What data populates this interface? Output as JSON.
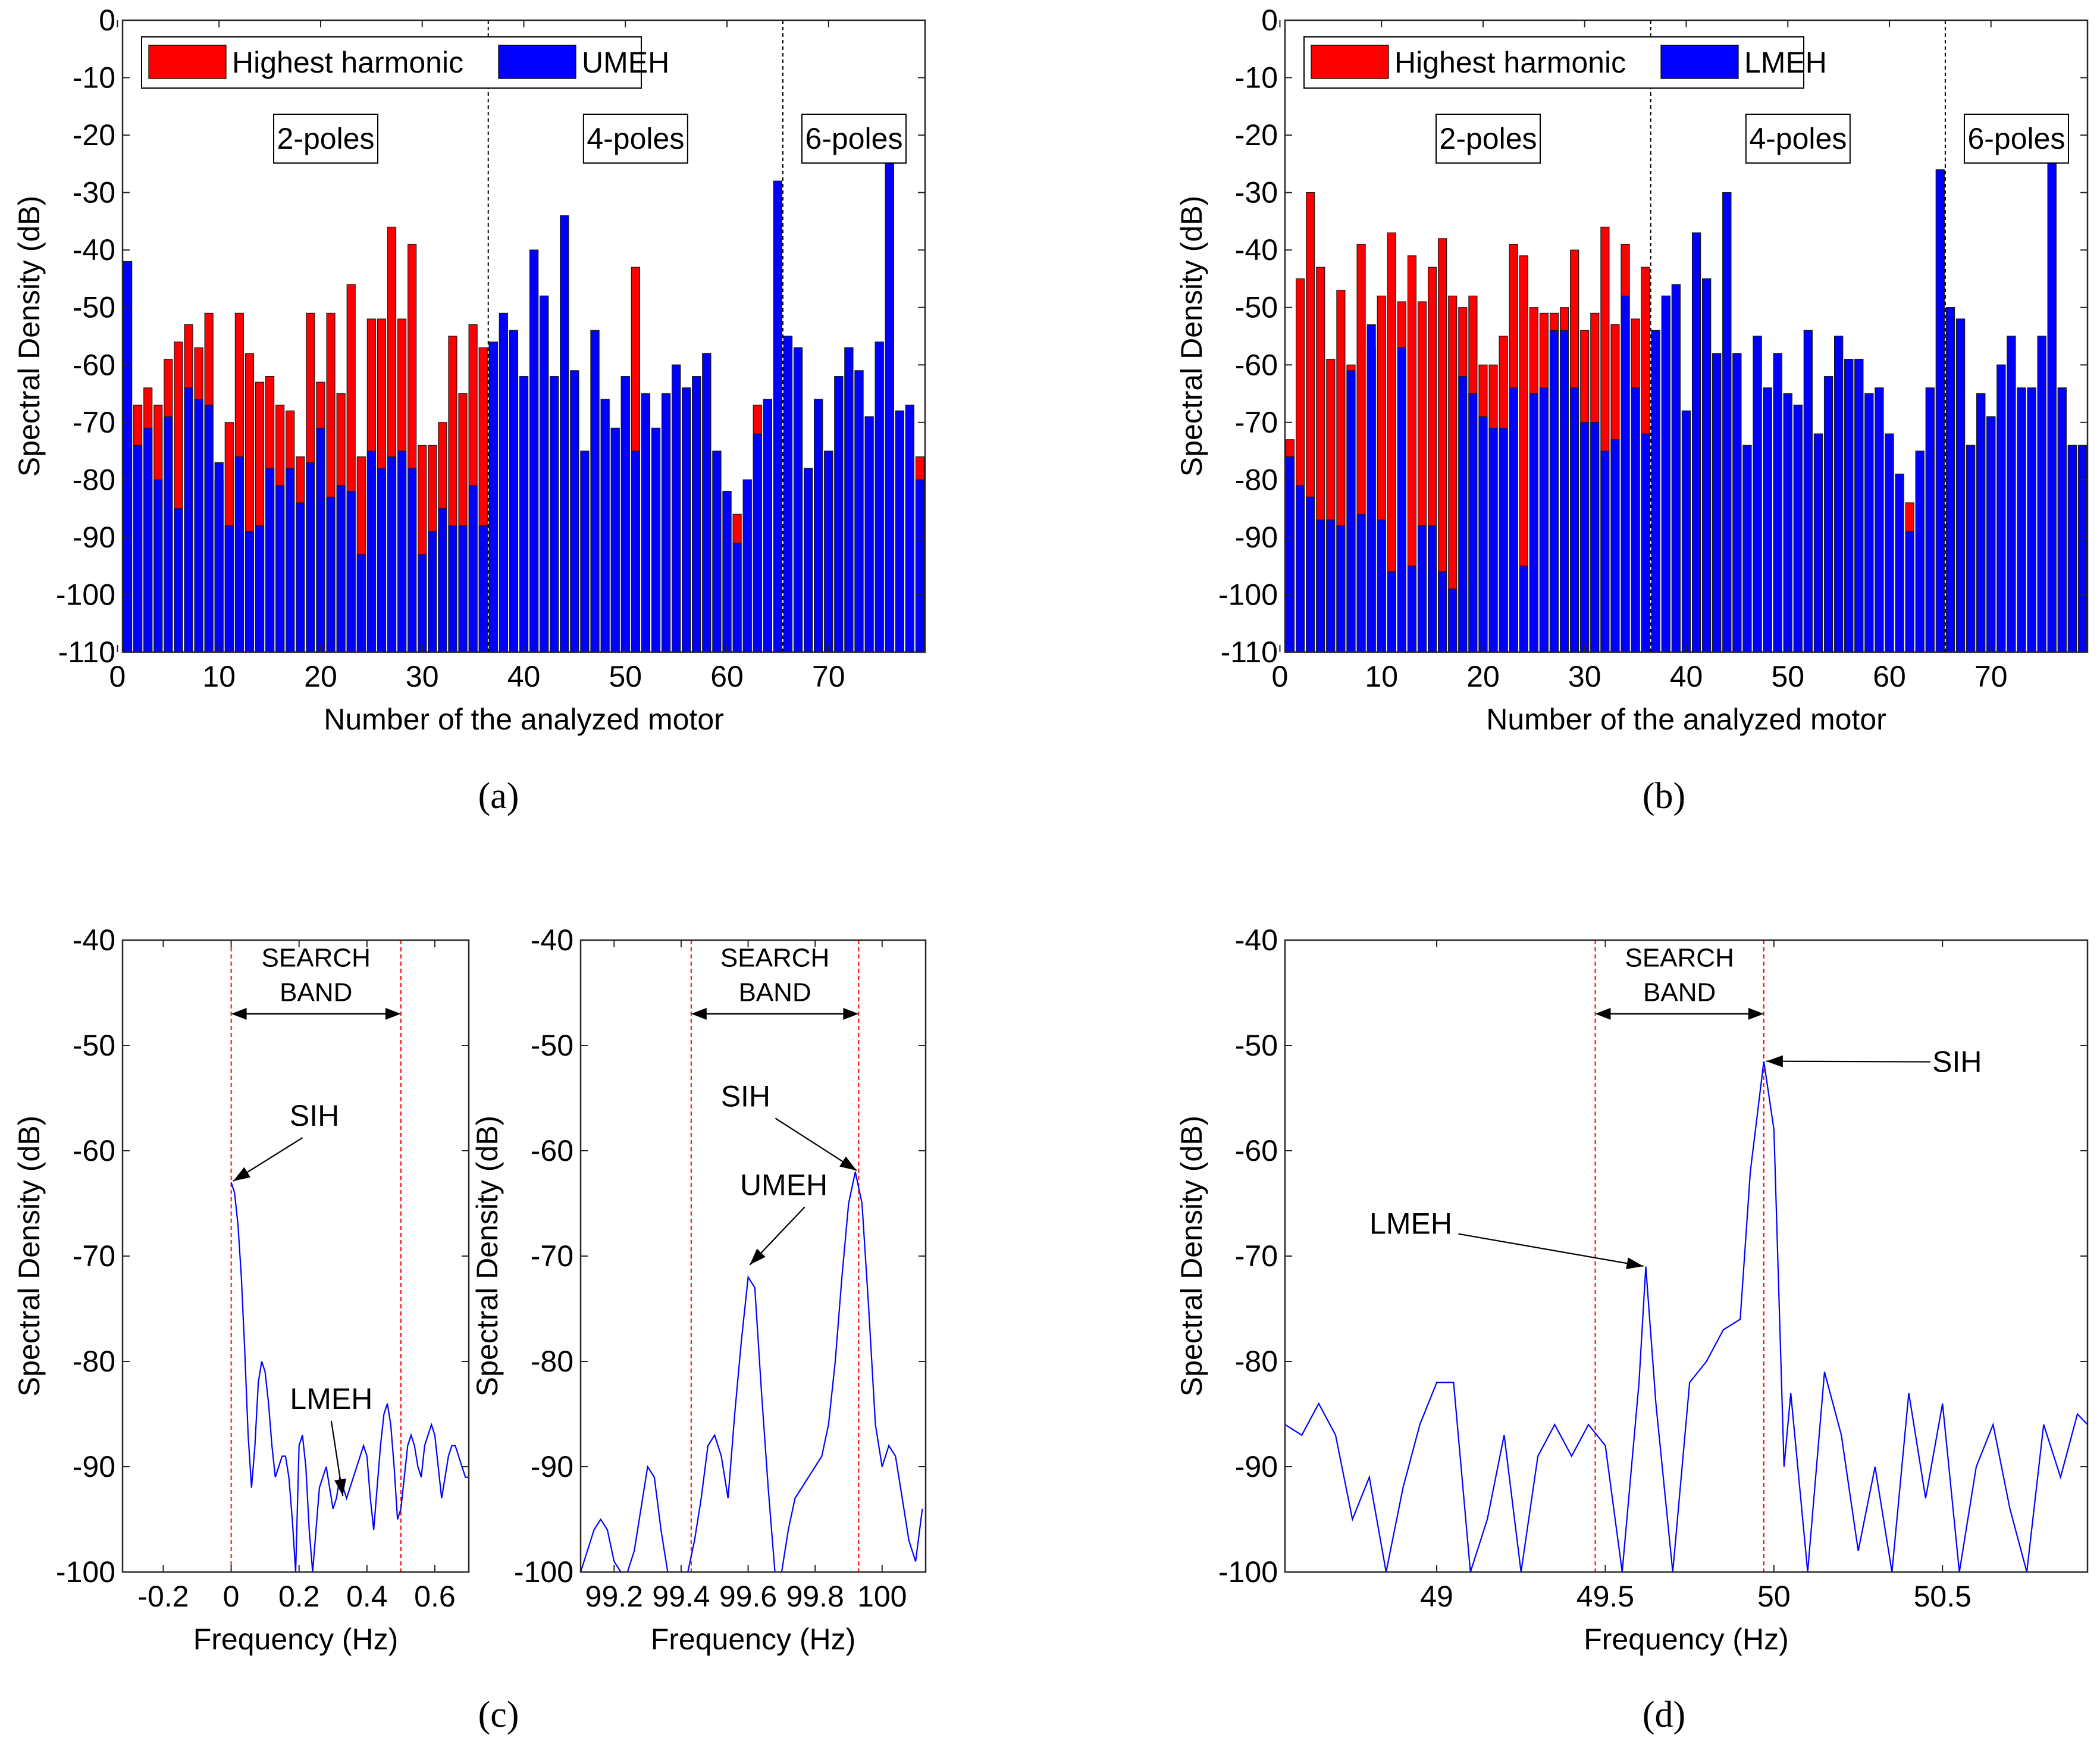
{
  "colors": {
    "red": "#ff0000",
    "blue": "#0000ff",
    "bar_edge": "#1a1a1a",
    "dashed_red": "#ff0000",
    "axis": "#262626"
  },
  "figure": {
    "caption_a": "(a)",
    "caption_b": "(b)",
    "caption_c": "(c)",
    "caption_d": "(d)"
  },
  "chart_data": [
    {
      "id": "a",
      "type": "bar",
      "xlabel": "Number of the analyzed motor",
      "ylabel": "Spectral Density (dB)",
      "xlim": [
        0.5,
        79.5
      ],
      "ylim": [
        -110,
        0
      ],
      "xticks": [
        0,
        10,
        20,
        30,
        40,
        50,
        60,
        70
      ],
      "yticks": [
        0,
        -10,
        -20,
        -30,
        -40,
        -50,
        -60,
        -70,
        -80,
        -90,
        -100,
        -110
      ],
      "legend": [
        "Highest harmonic",
        "UMEH"
      ],
      "legend_position": "top-left",
      "group_lines": [
        36.5,
        65.5
      ],
      "group_labels": [
        "2-poles",
        "4-poles",
        "6-poles"
      ],
      "series": [
        {
          "name": "Highest harmonic",
          "values": [
            -42,
            -67,
            -64,
            -67,
            -59,
            -56,
            -53,
            -57,
            -51,
            -80,
            -70,
            -51,
            -58,
            -63,
            -62,
            -67,
            -68,
            -76,
            -51,
            -63,
            -51,
            -65,
            -46,
            -76,
            -52,
            -52,
            -36,
            -52,
            -39,
            -74,
            -74,
            -70,
            -55,
            -65,
            -53,
            -57,
            -56,
            -53,
            -54,
            -62,
            -40,
            -48,
            -62,
            -34,
            -61,
            -75,
            -54,
            -66,
            -71,
            -62,
            -43,
            -65,
            -71,
            -65,
            -60,
            -64,
            -62,
            -58,
            -75,
            -82,
            -86,
            -80,
            -67,
            -66,
            -28,
            -55,
            -57,
            -78,
            -66,
            -75,
            -62,
            -57,
            -61,
            -69,
            -56,
            -24,
            -68,
            -67,
            -76
          ]
        },
        {
          "name": "UMEH",
          "values": [
            -42,
            -74,
            -71,
            -80,
            -69,
            -85,
            -64,
            -66,
            -67,
            -77,
            -88,
            -76,
            -89,
            -88,
            -78,
            -81,
            -78,
            -84,
            -77,
            -71,
            -83,
            -81,
            -82,
            -93,
            -75,
            -78,
            -76,
            -75,
            -78,
            -93,
            -89,
            -85,
            -88,
            -88,
            -81,
            -88,
            -56,
            -51,
            -54,
            -62,
            -40,
            -48,
            -62,
            -34,
            -61,
            -75,
            -54,
            -66,
            -71,
            -62,
            -75,
            -65,
            -71,
            -65,
            -60,
            -64,
            -62,
            -58,
            -75,
            -82,
            -91,
            -80,
            -72,
            -66,
            -28,
            -55,
            -57,
            -78,
            -66,
            -75,
            -62,
            -57,
            -61,
            -69,
            -56,
            -24,
            -68,
            -67,
            -80
          ]
        }
      ]
    },
    {
      "id": "b",
      "type": "bar",
      "xlabel": "Number of the analyzed motor",
      "ylabel": "Spectral Density (dB)",
      "xlim": [
        0.5,
        79.5
      ],
      "ylim": [
        -110,
        0
      ],
      "xticks": [
        0,
        10,
        20,
        30,
        40,
        50,
        60,
        70
      ],
      "yticks": [
        0,
        -10,
        -20,
        -30,
        -40,
        -50,
        -60,
        -70,
        -80,
        -90,
        -100,
        -110
      ],
      "legend": [
        "Highest harmonic",
        "LMEH"
      ],
      "legend_position": "top-left",
      "group_lines": [
        36.5,
        65.5
      ],
      "group_labels": [
        "2-poles",
        "4-poles",
        "6-poles"
      ],
      "series": [
        {
          "name": "Highest harmonic",
          "values": [
            -73,
            -45,
            -30,
            -43,
            -59,
            -47,
            -60,
            -39,
            -57,
            -48,
            -37,
            -49,
            -41,
            -49,
            -43,
            -38,
            -48,
            -50,
            -48,
            -60,
            -60,
            -55,
            -39,
            -41,
            -50,
            -51,
            -51,
            -50,
            -40,
            -54,
            -51,
            -36,
            -53,
            -39,
            -52,
            -43,
            -54,
            -48,
            -46,
            -68,
            -37,
            -45,
            -58,
            -30,
            -58,
            -74,
            -55,
            -64,
            -58,
            -65,
            -67,
            -54,
            -72,
            -62,
            -55,
            -59,
            -59,
            -65,
            -64,
            -72,
            -79,
            -84,
            -75,
            -64,
            -26,
            -50,
            -52,
            -74,
            -65,
            -69,
            -60,
            -55,
            -64,
            -64,
            -55,
            -24,
            -64,
            -74,
            -74
          ]
        },
        {
          "name": "LMEH",
          "values": [
            -76,
            -81,
            -83,
            -87,
            -87,
            -88,
            -61,
            -86,
            -53,
            -87,
            -96,
            -57,
            -95,
            -88,
            -88,
            -96,
            -99,
            -62,
            -65,
            -69,
            -71,
            -71,
            -64,
            -95,
            -65,
            -64,
            -54,
            -54,
            -64,
            -70,
            -70,
            -75,
            -73,
            -48,
            -64,
            -72,
            -54,
            -48,
            -46,
            -68,
            -37,
            -45,
            -58,
            -30,
            -58,
            -74,
            -55,
            -64,
            -58,
            -65,
            -67,
            -54,
            -72,
            -62,
            -55,
            -59,
            -59,
            -65,
            -64,
            -72,
            -79,
            -89,
            -75,
            -64,
            -26,
            -50,
            -52,
            -74,
            -65,
            -69,
            -60,
            -55,
            -64,
            -64,
            -55,
            -24,
            -64,
            -74,
            -74
          ]
        }
      ]
    },
    {
      "id": "c1",
      "type": "line",
      "xlabel": "Frequency (Hz)",
      "ylabel": "Spectral Density (dB)",
      "xlim": [
        -0.32,
        0.7
      ],
      "ylim": [
        -100,
        -40
      ],
      "xticks": [
        -0.2,
        0,
        0.2,
        0.4,
        0.6
      ],
      "xtick_labels": [
        "-0.2",
        "0",
        "0.2",
        "0.4",
        "0.6"
      ],
      "yticks": [
        -40,
        -50,
        -60,
        -70,
        -80,
        -90,
        -100
      ],
      "search_band": [
        0,
        0.5
      ],
      "band_label": [
        "SEARCH",
        "BAND"
      ],
      "annotations": [
        {
          "text": "SIH",
          "x": 0.0,
          "y": -63
        },
        {
          "text": "LMEH",
          "x": 0.33,
          "y": -93
        }
      ],
      "series": [
        {
          "name": "",
          "x": [
            0.0,
            0.01,
            0.02,
            0.03,
            0.04,
            0.05,
            0.06,
            0.07,
            0.08,
            0.09,
            0.1,
            0.11,
            0.12,
            0.13,
            0.14,
            0.15,
            0.16,
            0.17,
            0.18,
            0.19,
            0.2,
            0.21,
            0.22,
            0.23,
            0.24,
            0.25,
            0.26,
            0.27,
            0.28,
            0.29,
            0.3,
            0.31,
            0.32,
            0.33,
            0.34,
            0.35,
            0.36,
            0.37,
            0.38,
            0.39,
            0.4,
            0.41,
            0.42,
            0.43,
            0.44,
            0.45,
            0.46,
            0.47,
            0.48,
            0.49,
            0.5,
            0.51,
            0.52,
            0.53,
            0.54,
            0.55,
            0.56,
            0.57,
            0.58,
            0.59,
            0.6,
            0.61,
            0.62,
            0.63,
            0.64,
            0.65,
            0.66,
            0.67,
            0.68,
            0.69,
            0.7
          ],
          "y": [
            -63,
            -64,
            -67,
            -72,
            -79,
            -87,
            -92,
            -88,
            -82,
            -80,
            -81,
            -84,
            -88,
            -91,
            -90,
            -89,
            -89,
            -91,
            -95,
            -100,
            -88,
            -87,
            -90,
            -96,
            -100,
            -96,
            -92,
            -91,
            -90,
            -92,
            -94,
            -93,
            -91,
            -92,
            -93,
            -92,
            -91,
            -90,
            -89,
            -88,
            -89,
            -93,
            -96,
            -92,
            -88,
            -85,
            -84,
            -86,
            -90,
            -95,
            -94,
            -91,
            -88,
            -87,
            -88,
            -90,
            -91,
            -88,
            -87,
            -86,
            -87,
            -90,
            -93,
            -91,
            -89,
            -88,
            -88,
            -89,
            -90,
            -91,
            -91
          ]
        }
      ]
    },
    {
      "id": "c2",
      "type": "line",
      "xlabel": "Frequency (Hz)",
      "ylabel": "Spectral Density (dB)",
      "xlim": [
        99.1,
        100.13
      ],
      "ylim": [
        -100,
        -40
      ],
      "xticks": [
        99.2,
        99.4,
        99.6,
        99.8,
        100
      ],
      "xtick_labels": [
        "99.2",
        "99.4",
        "99.6",
        "99.8",
        "100"
      ],
      "yticks": [
        -40,
        -50,
        -60,
        -70,
        -80,
        -90,
        -100
      ],
      "search_band": [
        99.43,
        99.93
      ],
      "band_label": [
        "SEARCH",
        "BAND"
      ],
      "annotations": [
        {
          "text": "SIH",
          "x": 99.93,
          "y": -62
        },
        {
          "text": "UMEH",
          "x": 99.6,
          "y": -71
        }
      ],
      "series": [
        {
          "name": "",
          "x": [
            99.1,
            99.12,
            99.14,
            99.16,
            99.18,
            99.2,
            99.22,
            99.24,
            99.26,
            99.28,
            99.3,
            99.32,
            99.34,
            99.36,
            99.38,
            99.4,
            99.42,
            99.44,
            99.46,
            99.48,
            99.5,
            99.52,
            99.54,
            99.56,
            99.58,
            99.6,
            99.62,
            99.64,
            99.66,
            99.68,
            99.7,
            99.72,
            99.74,
            99.76,
            99.78,
            99.8,
            99.82,
            99.84,
            99.86,
            99.88,
            99.9,
            99.92,
            99.94,
            99.96,
            99.98,
            100.0,
            100.02,
            100.04,
            100.06,
            100.08,
            100.1,
            100.12
          ],
          "y": [
            -100,
            -98,
            -96,
            -95,
            -96,
            -99,
            -100,
            -100,
            -98,
            -94,
            -90,
            -91,
            -96,
            -100,
            -100,
            -100,
            -100,
            -97,
            -93,
            -88,
            -87,
            -89,
            -93,
            -85,
            -78,
            -72,
            -73,
            -83,
            -92,
            -100,
            -100,
            -96,
            -93,
            -92,
            -91,
            -90,
            -89,
            -86,
            -80,
            -72,
            -65,
            -62,
            -65,
            -75,
            -86,
            -90,
            -88,
            -89,
            -93,
            -97,
            -99,
            -94
          ]
        }
      ]
    },
    {
      "id": "d",
      "type": "line",
      "xlabel": "Frequency (Hz)",
      "ylabel": "Spectral Density (dB)",
      "xlim": [
        48.55,
        50.93
      ],
      "ylim": [
        -100,
        -40
      ],
      "xticks": [
        49,
        49.5,
        50,
        50.5
      ],
      "xtick_labels": [
        "49",
        "49.5",
        "50",
        "50.5"
      ],
      "yticks": [
        -40,
        -50,
        -60,
        -70,
        -80,
        -90,
        -100
      ],
      "search_band": [
        49.47,
        49.97
      ],
      "band_label": [
        "SEARCH",
        "BAND"
      ],
      "annotations": [
        {
          "text": "SIH",
          "x": 49.97,
          "y": -51.5
        },
        {
          "text": "LMEH",
          "x": 49.62,
          "y": -71
        }
      ],
      "series": [
        {
          "name": "",
          "x": [
            48.55,
            48.6,
            48.65,
            48.7,
            48.75,
            48.8,
            48.85,
            48.9,
            48.95,
            49.0,
            49.05,
            49.1,
            49.15,
            49.2,
            49.25,
            49.3,
            49.35,
            49.4,
            49.45,
            49.5,
            49.55,
            49.6,
            49.62,
            49.65,
            49.7,
            49.75,
            49.8,
            49.85,
            49.9,
            49.93,
            49.97,
            50.0,
            50.03,
            50.05,
            50.1,
            50.15,
            50.2,
            50.25,
            50.3,
            50.35,
            50.4,
            50.45,
            50.5,
            50.55,
            50.6,
            50.65,
            50.7,
            50.75,
            50.8,
            50.85,
            50.9,
            50.93
          ],
          "y": [
            -86,
            -87,
            -84,
            -87,
            -95,
            -91,
            -100,
            -92,
            -86,
            -82,
            -82,
            -100,
            -95,
            -87,
            -100,
            -89,
            -86,
            -89,
            -86,
            -88,
            -100,
            -82,
            -71,
            -84,
            -100,
            -82,
            -80,
            -77,
            -76,
            -62,
            -51.5,
            -58,
            -90,
            -83,
            -100,
            -81,
            -87,
            -98,
            -90,
            -100,
            -83,
            -93,
            -84,
            -100,
            -90,
            -86,
            -94,
            -100,
            -86,
            -91,
            -85,
            -86
          ]
        }
      ]
    }
  ]
}
